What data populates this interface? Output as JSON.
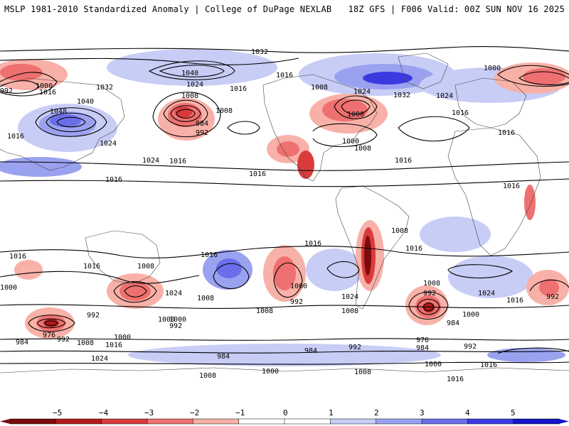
{
  "header": {
    "left_text": "MSLP 1981-2010 Standardized Anomaly | College of DuPage NEXLAB",
    "right_text": "18Z GFS | F006 Valid: 00Z SUN NOV 16 2025"
  },
  "map": {
    "projection": "equirectangular global",
    "contour_labels": [
      "1032",
      "1040",
      "1016",
      "1024",
      "1032",
      "1000",
      "992",
      "1000",
      "1016",
      "1040",
      "1048",
      "1032",
      "1024",
      "1008",
      "1008",
      "984",
      "992",
      "1016",
      "1016",
      "1008",
      "1024",
      "1000",
      "1008",
      "1000",
      "1016",
      "1024",
      "1016",
      "1016",
      "1024",
      "1016",
      "1016",
      "1016",
      "1016",
      "1008",
      "1016",
      "1016",
      "1016",
      "1008",
      "1024",
      "1016",
      "1000",
      "1024",
      "1016",
      "992",
      "992",
      "1000",
      "1008",
      "992",
      "1008",
      "1000",
      "1008",
      "1008",
      "1024",
      "992",
      "1000",
      "976",
      "992",
      "984",
      "1008",
      "1016",
      "992",
      "1000",
      "1024",
      "984",
      "984",
      "992",
      "976",
      "984",
      "984",
      "992",
      "1000",
      "1016",
      "1000",
      "1016",
      "1008",
      "1000",
      "1008",
      "1016"
    ],
    "anomaly_colors": {
      "neg5": "#7a0c0c",
      "neg4": "#b31a1a",
      "neg3": "#d93b3b",
      "neg2": "#ef7070",
      "neg1": "#f8b1a8",
      "zero": "#ffffff",
      "pos1": "#c8cdf6",
      "pos2": "#9aa2f0",
      "pos3": "#6a6ee8",
      "pos4": "#3b3ae0",
      "pos5": "#1414c8"
    }
  },
  "colorbar": {
    "ticks": [
      "−5",
      "−4",
      "−3",
      "−2",
      "−1",
      "0",
      "1",
      "2",
      "3",
      "4",
      "5"
    ],
    "colors": [
      "#7a0c0c",
      "#b31a1a",
      "#d93b3b",
      "#ef7070",
      "#f8b1a8",
      "#ffffff",
      "#ffffff",
      "#c8cdf6",
      "#9aa2f0",
      "#6a6ee8",
      "#3b3ae0",
      "#1414c8"
    ]
  }
}
